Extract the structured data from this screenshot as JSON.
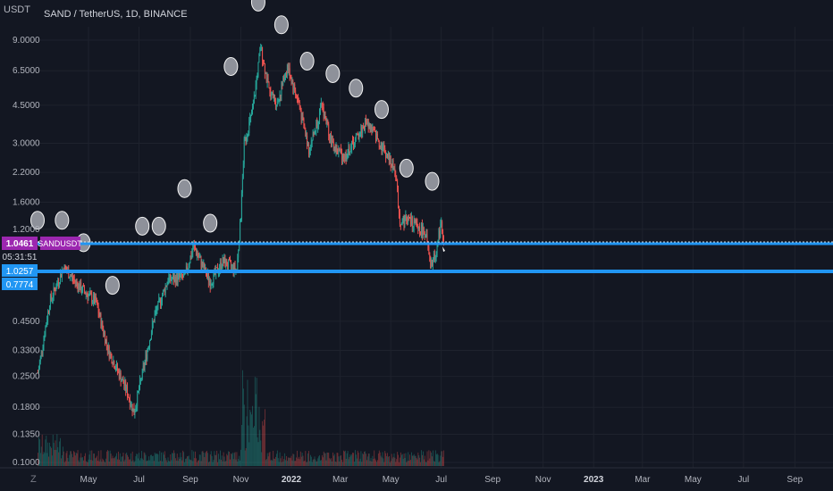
{
  "header": {
    "currency": "USDT",
    "title": "SAND / TetherUS, 1D, BINANCE"
  },
  "price_axis": {
    "ticks": [
      "9.0000",
      "6.5000",
      "4.5000",
      "3.0000",
      "2.2000",
      "1.6000",
      "1.2000",
      "0.4500",
      "0.3300",
      "0.2500",
      "0.1800",
      "0.1350",
      "0.1000"
    ]
  },
  "time_axis": {
    "ticks": [
      "May",
      "Jul",
      "Sep",
      "Nov",
      "2022",
      "Mar",
      "May",
      "Jul",
      "Sep",
      "Nov",
      "2023",
      "Mar",
      "May",
      "Jul",
      "Sep"
    ]
  },
  "badges": {
    "last_price": "1.0461",
    "symbol": "SANDUSDT",
    "countdown": "05:31:51",
    "level_1": "1.0257",
    "level_2": "0.7774"
  },
  "footer": {
    "zoom_icon_label": "Z"
  },
  "colors": {
    "background": "#131722",
    "grid": "#1e222d",
    "axis_text": "#b2b5be",
    "up_candle": "#26a69a",
    "down_candle": "#ef5350",
    "line_blue": "#2196f3",
    "badge_purple": "#9c27b0",
    "marker_grey": "#9598a1"
  },
  "chart_data": {
    "type": "candlestick",
    "symbol": "SANDUSDT",
    "timeframe": "1D",
    "exchange": "BINANCE",
    "scale": "log",
    "last_price": 1.0461,
    "horizontal_levels": [
      1.0461,
      0.7774
    ],
    "price_path": [
      {
        "date": "2021-03-01",
        "price": 0.26
      },
      {
        "date": "2021-03-15",
        "price": 0.55
      },
      {
        "date": "2021-04-01",
        "price": 0.8
      },
      {
        "date": "2021-04-20",
        "price": 0.65
      },
      {
        "date": "2021-05-10",
        "price": 0.55
      },
      {
        "date": "2021-05-25",
        "price": 0.33
      },
      {
        "date": "2021-06-15",
        "price": 0.22
      },
      {
        "date": "2021-06-25",
        "price": 0.17
      },
      {
        "date": "2021-07-20",
        "price": 0.48
      },
      {
        "date": "2021-08-05",
        "price": 0.7
      },
      {
        "date": "2021-08-25",
        "price": 0.72
      },
      {
        "date": "2021-09-05",
        "price": 1.0
      },
      {
        "date": "2021-09-25",
        "price": 0.68
      },
      {
        "date": "2021-10-10",
        "price": 0.85
      },
      {
        "date": "2021-10-27",
        "price": 0.78
      },
      {
        "date": "2021-11-01",
        "price": 1.4
      },
      {
        "date": "2021-11-05",
        "price": 3.0
      },
      {
        "date": "2021-11-15",
        "price": 4.2
      },
      {
        "date": "2021-11-25",
        "price": 8.4
      },
      {
        "date": "2021-12-05",
        "price": 5.2
      },
      {
        "date": "2021-12-15",
        "price": 4.6
      },
      {
        "date": "2021-12-27",
        "price": 6.8
      },
      {
        "date": "2022-01-10",
        "price": 4.6
      },
      {
        "date": "2022-01-22",
        "price": 2.8
      },
      {
        "date": "2022-02-07",
        "price": 4.5
      },
      {
        "date": "2022-02-20",
        "price": 2.9
      },
      {
        "date": "2022-03-07",
        "price": 2.6
      },
      {
        "date": "2022-04-02",
        "price": 3.8
      },
      {
        "date": "2022-04-25",
        "price": 2.7
      },
      {
        "date": "2022-05-07",
        "price": 2.2
      },
      {
        "date": "2022-05-12",
        "price": 1.3
      },
      {
        "date": "2022-05-20",
        "price": 1.35
      },
      {
        "date": "2022-06-12",
        "price": 1.15
      },
      {
        "date": "2022-06-18",
        "price": 0.8
      },
      {
        "date": "2022-06-25",
        "price": 0.95
      },
      {
        "date": "2022-07-01",
        "price": 1.3
      },
      {
        "date": "2022-07-04",
        "price": 1.0461
      }
    ],
    "grey_markers": [
      {
        "date": "2021-02-25",
        "price": 1.32
      },
      {
        "date": "2021-03-30",
        "price": 1.32
      },
      {
        "date": "2021-04-25",
        "price": 1.04
      },
      {
        "date": "2021-05-30",
        "price": 0.66
      },
      {
        "date": "2021-07-05",
        "price": 1.24
      },
      {
        "date": "2021-07-25",
        "price": 1.24
      },
      {
        "date": "2021-08-25",
        "price": 1.85
      },
      {
        "date": "2021-09-25",
        "price": 1.28
      },
      {
        "date": "2021-10-20",
        "price": 6.8
      },
      {
        "date": "2021-11-22",
        "price": 13.5
      },
      {
        "date": "2021-12-20",
        "price": 10.6
      },
      {
        "date": "2022-01-20",
        "price": 7.2
      },
      {
        "date": "2022-02-20",
        "price": 6.3
      },
      {
        "date": "2022-03-20",
        "price": 5.4
      },
      {
        "date": "2022-04-20",
        "price": 4.3
      },
      {
        "date": "2022-05-20",
        "price": 2.3
      },
      {
        "date": "2022-06-20",
        "price": 2.0
      }
    ]
  }
}
